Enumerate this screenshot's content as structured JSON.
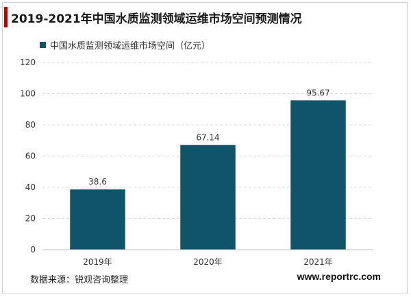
{
  "header": {
    "title": "2019-2021年中国水质监测领域运维市场空间预测情况"
  },
  "legend": {
    "label": "中国水质监测领域运维市场空间（亿元）"
  },
  "footer": {
    "source": "数据来源：锐观咨询整理",
    "website": "www.reportrc.com"
  },
  "colors": {
    "bar": "#0f5469",
    "accent": "#c00000",
    "grid": "#d9d9d9"
  },
  "chart_data": {
    "type": "bar",
    "title": "2019-2021年中国水质监测领域运维市场空间预测情况",
    "categories": [
      "2019年",
      "2020年",
      "2021年"
    ],
    "series": [
      {
        "name": "中国水质监测领域运维市场空间（亿元）",
        "values": [
          38.6,
          67.14,
          95.67
        ]
      }
    ],
    "data_labels": [
      "38.6",
      "67.14",
      "95.67"
    ],
    "yticks": [
      "0",
      "20",
      "40",
      "60",
      "80",
      "100",
      "120"
    ],
    "ylim": [
      0,
      120
    ],
    "xlabel": "",
    "ylabel": "",
    "grid": true,
    "legend_position": "top-left"
  }
}
